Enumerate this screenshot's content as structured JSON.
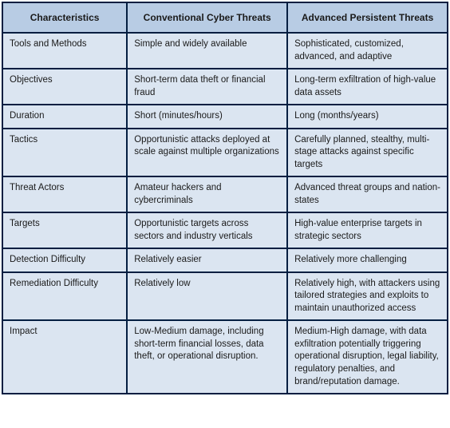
{
  "table": {
    "header_bg": "#b8cce4",
    "cell_bg": "#dbe5f1",
    "border_color": "#041e41",
    "columns": [
      "Characteristics",
      "Conventional Cyber Threats",
      "Advanced Persistent Threats"
    ],
    "rows": [
      {
        "characteristic": "Tools and Methods",
        "conventional": "Simple and widely available",
        "apt": "Sophisticated, customized, advanced, and adaptive"
      },
      {
        "characteristic": "Objectives",
        "conventional": "Short-term data theft or financial fraud",
        "apt": "Long-term exfiltration of high-value data assets"
      },
      {
        "characteristic": "Duration",
        "conventional": "Short (minutes/hours)",
        "apt": "Long (months/years)"
      },
      {
        "characteristic": "Tactics",
        "conventional": "Opportunistic attacks deployed at scale against multiple organizations",
        "apt": "Carefully planned, stealthy, multi-stage attacks against specific targets"
      },
      {
        "characteristic": "Threat Actors",
        "conventional": "Amateur hackers and cybercriminals",
        "apt": "Advanced threat groups and nation-states"
      },
      {
        "characteristic": "Targets",
        "conventional": "Opportunistic targets across sectors and industry verticals",
        "apt": "High-value enterprise targets in strategic sectors"
      },
      {
        "characteristic": "Detection Difficulty",
        "conventional": "Relatively easier",
        "apt": "Relatively more challenging"
      },
      {
        "characteristic": "Remediation Difficulty",
        "conventional": "Relatively low",
        "apt": "Relatively high, with attackers using tailored strategies and exploits to maintain unauthorized access"
      },
      {
        "characteristic": "Impact",
        "conventional": "Low-Medium damage, including short-term financial losses, data theft, or operational disruption.",
        "apt": "Medium-High damage, with data exfiltration potentially triggering operational disruption, legal liability, regulatory penalties, and brand/reputation damage."
      }
    ]
  }
}
